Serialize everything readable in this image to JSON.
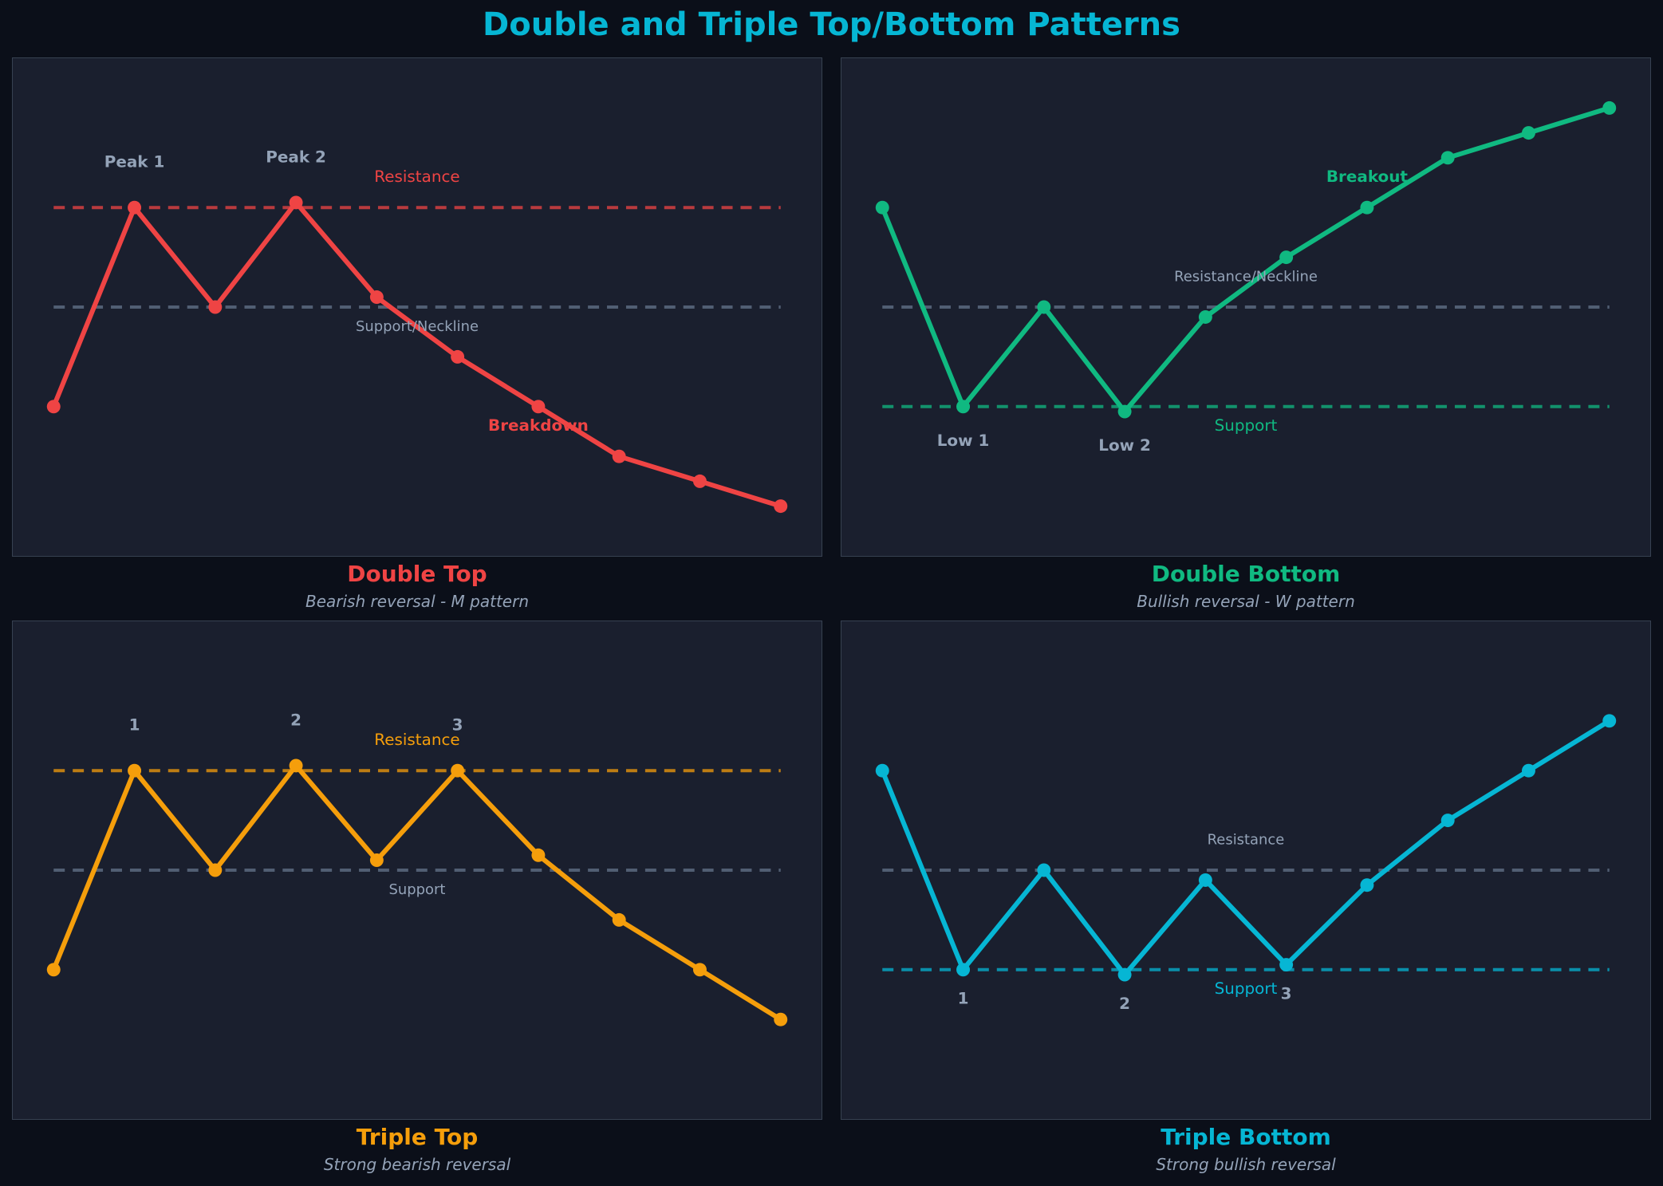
{
  "title": "Double and Triple Top/Bottom Patterns",
  "chart_data": [
    {
      "type": "line",
      "title": "Double Top",
      "subtitle": "Bearish reversal - M pattern",
      "color": "#ef4444",
      "xlim": [
        -0.5,
        9.5
      ],
      "ylim": [
        65,
        115
      ],
      "grid": false,
      "x": [
        0,
        1,
        2,
        3,
        4,
        5,
        6,
        7,
        8,
        9
      ],
      "values": [
        80,
        100,
        90,
        100.5,
        91,
        85,
        80,
        75,
        72.5,
        70
      ],
      "hlines": [
        {
          "y": 100,
          "color": "#ef4444"
        },
        {
          "y": 90,
          "color": "#64748b"
        }
      ],
      "annotations": [
        {
          "text": "Peak 1",
          "x": 1,
          "y": 104.5,
          "color": "#94a3b8",
          "bold": true
        },
        {
          "text": "Peak 2",
          "x": 3,
          "y": 105,
          "color": "#94a3b8",
          "bold": true
        },
        {
          "text": "Resistance",
          "x": 4.5,
          "y": 103,
          "color": "#ef4444",
          "bold": false
        },
        {
          "text": "Support/Neckline",
          "x": 4.5,
          "y": 88,
          "color": "#94a3b8",
          "bold": false,
          "small": true
        },
        {
          "text": "Breakdown",
          "x": 6,
          "y": 78,
          "color": "#ef4444",
          "bold": true
        }
      ]
    },
    {
      "type": "line",
      "title": "Double Bottom",
      "subtitle": "Bullish reversal - W pattern",
      "color": "#10b981",
      "xlim": [
        -0.5,
        9.5
      ],
      "ylim": [
        65,
        115
      ],
      "grid": false,
      "x": [
        0,
        1,
        2,
        3,
        4,
        5,
        6,
        7,
        8,
        9
      ],
      "values": [
        100,
        80,
        90,
        79.5,
        89,
        95,
        100,
        105,
        107.5,
        110
      ],
      "hlines": [
        {
          "y": 80,
          "color": "#10b981"
        },
        {
          "y": 90,
          "color": "#64748b"
        }
      ],
      "annotations": [
        {
          "text": "Low 1",
          "x": 1,
          "y": 76.5,
          "color": "#94a3b8",
          "bold": true
        },
        {
          "text": "Low 2",
          "x": 3,
          "y": 76,
          "color": "#94a3b8",
          "bold": true
        },
        {
          "text": "Support",
          "x": 4.5,
          "y": 78,
          "color": "#10b981",
          "bold": false
        },
        {
          "text": "Resistance/Neckline",
          "x": 4.5,
          "y": 93,
          "color": "#94a3b8",
          "bold": false,
          "small": true
        },
        {
          "text": "Breakout",
          "x": 6,
          "y": 103,
          "color": "#10b981",
          "bold": true
        }
      ]
    },
    {
      "type": "line",
      "title": "Triple Top",
      "subtitle": "Strong bearish reversal",
      "color": "#f59e0b",
      "xlim": [
        -0.5,
        9.5
      ],
      "ylim": [
        65,
        115
      ],
      "grid": false,
      "x": [
        0,
        1,
        2,
        3,
        4,
        5,
        6,
        7,
        8,
        9
      ],
      "values": [
        80,
        100,
        90,
        100.5,
        91,
        100,
        91.5,
        85,
        80,
        75
      ],
      "hlines": [
        {
          "y": 100,
          "color": "#f59e0b"
        },
        {
          "y": 90,
          "color": "#64748b"
        }
      ],
      "annotations": [
        {
          "text": "1",
          "x": 1,
          "y": 104.5,
          "color": "#94a3b8",
          "bold": true
        },
        {
          "text": "2",
          "x": 3,
          "y": 105,
          "color": "#94a3b8",
          "bold": true
        },
        {
          "text": "3",
          "x": 5,
          "y": 104.5,
          "color": "#94a3b8",
          "bold": true
        },
        {
          "text": "Resistance",
          "x": 4.5,
          "y": 103,
          "color": "#f59e0b",
          "bold": false
        },
        {
          "text": "Support",
          "x": 4.5,
          "y": 88,
          "color": "#94a3b8",
          "bold": false,
          "small": true
        }
      ]
    },
    {
      "type": "line",
      "title": "Triple Bottom",
      "subtitle": "Strong bullish reversal",
      "color": "#06b6d4",
      "xlim": [
        -0.5,
        9.5
      ],
      "ylim": [
        65,
        115
      ],
      "grid": false,
      "x": [
        0,
        1,
        2,
        3,
        4,
        5,
        6,
        7,
        8,
        9
      ],
      "values": [
        100,
        80,
        90,
        79.5,
        89,
        80.5,
        88.5,
        95,
        100,
        105
      ],
      "hlines": [
        {
          "y": 80,
          "color": "#06b6d4"
        },
        {
          "y": 90,
          "color": "#64748b"
        }
      ],
      "annotations": [
        {
          "text": "1",
          "x": 1,
          "y": 77,
          "color": "#94a3b8",
          "bold": true
        },
        {
          "text": "2",
          "x": 3,
          "y": 76.5,
          "color": "#94a3b8",
          "bold": true
        },
        {
          "text": "3",
          "x": 5,
          "y": 77.5,
          "color": "#94a3b8",
          "bold": true
        },
        {
          "text": "Support",
          "x": 4.5,
          "y": 78,
          "color": "#06b6d4",
          "bold": false
        },
        {
          "text": "Resistance",
          "x": 4.5,
          "y": 93,
          "color": "#94a3b8",
          "bold": false,
          "small": true
        }
      ]
    }
  ]
}
